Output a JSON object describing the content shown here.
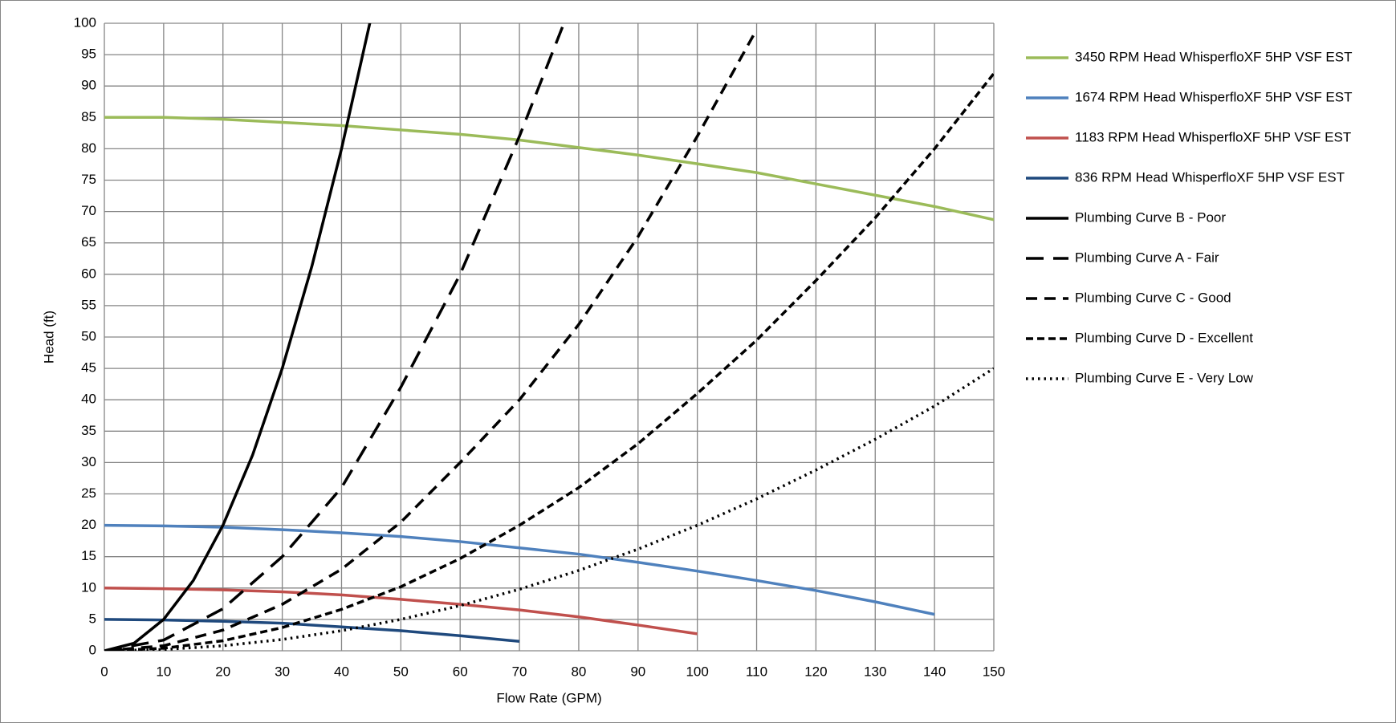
{
  "chart_data": {
    "type": "line",
    "x_label": "Flow Rate (GPM)",
    "y_label": "Head (ft)",
    "xlim": [
      0,
      150
    ],
    "xticks": [
      0,
      10,
      20,
      30,
      40,
      50,
      60,
      70,
      80,
      90,
      100,
      110,
      120,
      130,
      140,
      150
    ],
    "ylim": [
      0,
      100
    ],
    "yticks": [
      0,
      5,
      10,
      15,
      20,
      25,
      30,
      35,
      40,
      45,
      50,
      55,
      60,
      65,
      70,
      75,
      80,
      85,
      90,
      95,
      100
    ],
    "grid": true,
    "legend": "right",
    "series": [
      {
        "name": "3450 RPM Head WhisperfloXF 5HP VSF EST",
        "color": "#9bbb59",
        "style": "solid",
        "x": [
          0,
          10,
          20,
          30,
          40,
          50,
          60,
          70,
          80,
          90,
          100,
          110,
          120,
          130,
          140,
          150
        ],
        "values": [
          85,
          85,
          84.7,
          84.2,
          83.7,
          83,
          82.3,
          81.4,
          80.2,
          79,
          77.6,
          76.2,
          74.4,
          72.6,
          70.8,
          68.7
        ]
      },
      {
        "name": "1674 RPM Head WhisperfloXF 5HP VSF EST",
        "color": "#4f81bd",
        "style": "solid",
        "x": [
          0,
          10,
          20,
          30,
          40,
          50,
          60,
          70,
          80,
          90,
          100,
          110,
          120,
          130,
          140
        ],
        "values": [
          20,
          19.9,
          19.7,
          19.3,
          18.8,
          18.2,
          17.4,
          16.4,
          15.4,
          14.1,
          12.7,
          11.2,
          9.6,
          7.8,
          5.8
        ]
      },
      {
        "name": "1183 RPM Head WhisperfloXF 5HP VSF EST",
        "color": "#c0504d",
        "style": "solid",
        "x": [
          0,
          10,
          20,
          30,
          40,
          50,
          60,
          70,
          80,
          90,
          100
        ],
        "values": [
          10,
          9.9,
          9.7,
          9.4,
          8.9,
          8.2,
          7.4,
          6.5,
          5.4,
          4.1,
          2.7
        ]
      },
      {
        "name": "836 RPM Head WhisperfloXF 5HP VSF EST",
        "color": "#1f497d",
        "style": "solid",
        "x": [
          0,
          10,
          20,
          30,
          40,
          50,
          60,
          70
        ],
        "values": [
          5,
          4.9,
          4.7,
          4.4,
          3.8,
          3.2,
          2.4,
          1.5
        ]
      },
      {
        "name": "Plumbing Curve B - Poor",
        "color": "#000000",
        "style": "solid",
        "x": [
          0,
          5,
          10,
          15,
          20,
          25,
          30,
          35,
          40,
          45
        ],
        "values": [
          0,
          1.2,
          5,
          11.2,
          20,
          31.2,
          45,
          61.3,
          80,
          101
        ]
      },
      {
        "name": "Plumbing Curve A - Fair",
        "color": "#000000",
        "style": "longdash",
        "x": [
          0,
          10,
          20,
          30,
          40,
          50,
          60,
          70,
          77.5
        ],
        "values": [
          0,
          1.7,
          6.7,
          15,
          26,
          42,
          60,
          82,
          100
        ]
      },
      {
        "name": "Plumbing Curve C - Good",
        "color": "#000000",
        "style": "dash",
        "x": [
          0,
          10,
          20,
          30,
          40,
          50,
          60,
          70,
          80,
          90,
          100,
          110
        ],
        "values": [
          0,
          0.8,
          3.3,
          7.4,
          13,
          20.5,
          30,
          40,
          52,
          66,
          82,
          99
        ]
      },
      {
        "name": "Plumbing Curve D - Excellent",
        "color": "#000000",
        "style": "shortdash",
        "x": [
          0,
          10,
          20,
          30,
          40,
          50,
          60,
          70,
          80,
          90,
          100,
          110,
          120,
          130,
          140,
          150
        ],
        "values": [
          0,
          0.4,
          1.6,
          3.7,
          6.6,
          10.2,
          14.7,
          20,
          26,
          33,
          41,
          49.5,
          59,
          69,
          80,
          92
        ]
      },
      {
        "name": "Plumbing Curve E - Very Low",
        "color": "#000000",
        "style": "dot",
        "x": [
          0,
          10,
          20,
          30,
          40,
          50,
          60,
          70,
          80,
          90,
          100,
          110,
          120,
          130,
          140,
          150
        ],
        "values": [
          0,
          0.2,
          0.8,
          1.8,
          3.2,
          5,
          7.2,
          9.8,
          12.8,
          16.2,
          20,
          24.2,
          28.8,
          33.7,
          39,
          45
        ]
      }
    ]
  }
}
